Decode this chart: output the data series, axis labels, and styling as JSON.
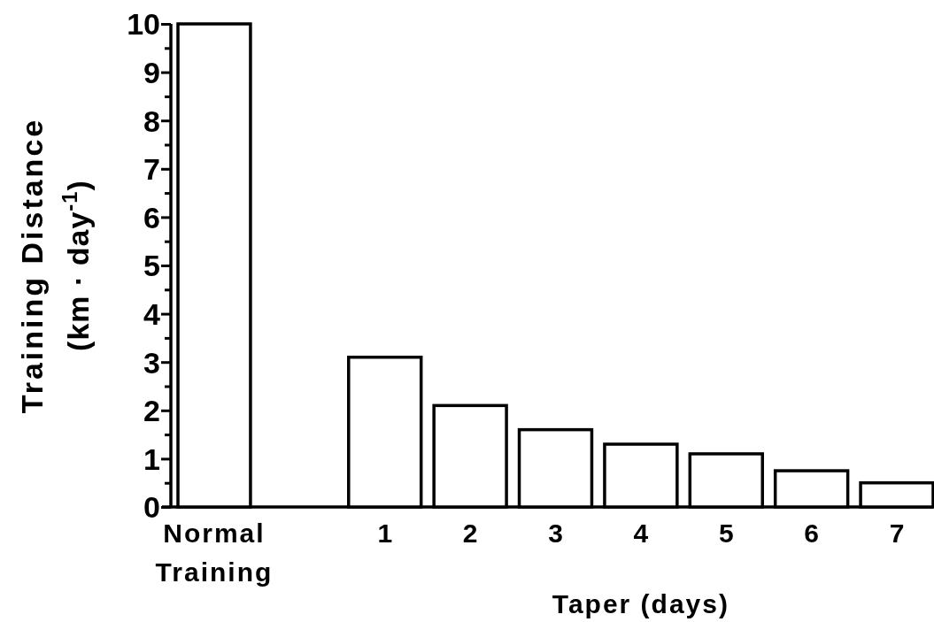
{
  "chart_data": {
    "type": "bar",
    "categories": [
      "Normal Training",
      null,
      "1",
      "2",
      "3",
      "4",
      "5",
      "6",
      "7"
    ],
    "values": [
      10,
      null,
      3.1,
      2.1,
      1.6,
      1.3,
      1.1,
      0.75,
      0.5
    ],
    "color": "#ffffff",
    "xlabel": "Taper (days)",
    "ylabel": "Training Distance\n(km · day$^{-1}$)",
    "ylim": [
      0,
      10
    ],
    "yticks": [
      0,
      {
        "value": 0.5,
        "label": null
      },
      1,
      {
        "value": 1.5,
        "label": null
      },
      2,
      {
        "value": 2.5,
        "label": null
      },
      3,
      {
        "value": 3.5,
        "label": null
      },
      4,
      {
        "value": 4.5,
        "label": null
      },
      5,
      {
        "value": 5.5,
        "label": null
      },
      6,
      {
        "value": 6.5,
        "label": null
      },
      7,
      {
        "value": 7.5,
        "label": null
      },
      8,
      {
        "value": 8.5,
        "label": null
      },
      9,
      {
        "value": 9.5,
        "label": null
      },
      10
    ],
    "grid": false
  }
}
